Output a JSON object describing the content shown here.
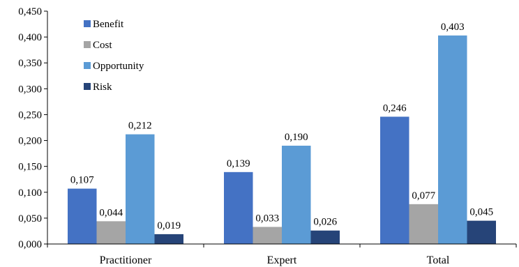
{
  "chart_data": {
    "type": "bar",
    "categories": [
      "Practitioner",
      "Expert",
      "Total"
    ],
    "series": [
      {
        "name": "Benefit",
        "values": [
          0.107,
          0.139,
          0.246
        ],
        "labels": [
          "0,107",
          "0,139",
          "0,246"
        ]
      },
      {
        "name": "Cost",
        "values": [
          0.044,
          0.033,
          0.077
        ],
        "labels": [
          "0,044",
          "0,033",
          "0,077"
        ]
      },
      {
        "name": "Opportunity",
        "values": [
          0.212,
          0.19,
          0.403
        ],
        "labels": [
          "0,212",
          "0,190",
          "0,403"
        ]
      },
      {
        "name": "Risk",
        "values": [
          0.019,
          0.026,
          0.045
        ],
        "labels": [
          "0,019",
          "0,026",
          "0,045"
        ]
      }
    ],
    "colors": [
      "#4472c4",
      "#a5a5a5",
      "#5b9bd5",
      "#264478"
    ],
    "ylim": [
      0,
      0.45
    ],
    "yticks": [
      0,
      0.05,
      0.1,
      0.15,
      0.2,
      0.25,
      0.3,
      0.35,
      0.4,
      0.45
    ],
    "ytick_labels": [
      "0,000",
      "0,050",
      "0,100",
      "0,150",
      "0,200",
      "0,250",
      "0,300",
      "0,350",
      "0,400",
      "0,450"
    ],
    "title": "",
    "xlabel": "",
    "ylabel": "",
    "grid": false,
    "legend_position": "top-left"
  }
}
